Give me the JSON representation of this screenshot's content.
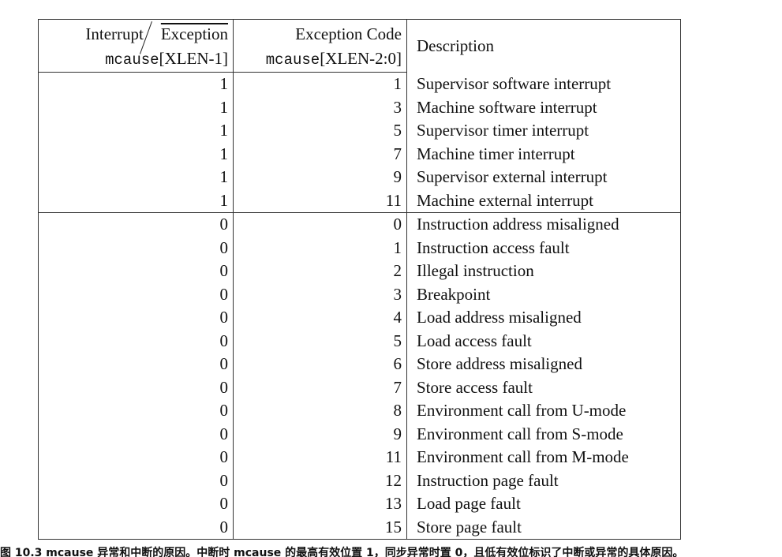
{
  "table": {
    "header": {
      "col1_line1_left": "Interrupt",
      "col1_line1_right": "Exception",
      "col1_line2_mono": "mcause",
      "col1_line2_rest": "[XLEN-1]",
      "col2_line1": "Exception Code",
      "col2_line2_mono": "mcause",
      "col2_line2_rest": "[XLEN-2:0]",
      "col3": "Description"
    },
    "interrupt_rows": [
      {
        "interrupt": "1",
        "code": "1",
        "desc": "Supervisor software interrupt"
      },
      {
        "interrupt": "1",
        "code": "3",
        "desc": "Machine software interrupt"
      },
      {
        "interrupt": "1",
        "code": "5",
        "desc": "Supervisor timer interrupt"
      },
      {
        "interrupt": "1",
        "code": "7",
        "desc": "Machine timer interrupt"
      },
      {
        "interrupt": "1",
        "code": "9",
        "desc": "Supervisor external interrupt"
      },
      {
        "interrupt": "1",
        "code": "11",
        "desc": "Machine external interrupt"
      }
    ],
    "exception_rows": [
      {
        "interrupt": "0",
        "code": "0",
        "desc": "Instruction address misaligned"
      },
      {
        "interrupt": "0",
        "code": "1",
        "desc": "Instruction access fault"
      },
      {
        "interrupt": "0",
        "code": "2",
        "desc": "Illegal instruction"
      },
      {
        "interrupt": "0",
        "code": "3",
        "desc": "Breakpoint"
      },
      {
        "interrupt": "0",
        "code": "4",
        "desc": "Load address misaligned"
      },
      {
        "interrupt": "0",
        "code": "5",
        "desc": "Load access fault"
      },
      {
        "interrupt": "0",
        "code": "6",
        "desc": "Store address misaligned"
      },
      {
        "interrupt": "0",
        "code": "7",
        "desc": "Store access fault"
      },
      {
        "interrupt": "0",
        "code": "8",
        "desc": "Environment call from U-mode"
      },
      {
        "interrupt": "0",
        "code": "9",
        "desc": "Environment call from S-mode"
      },
      {
        "interrupt": "0",
        "code": "11",
        "desc": "Environment call from M-mode"
      },
      {
        "interrupt": "0",
        "code": "12",
        "desc": "Instruction page fault"
      },
      {
        "interrupt": "0",
        "code": "13",
        "desc": "Load page fault"
      },
      {
        "interrupt": "0",
        "code": "15",
        "desc": "Store page fault"
      }
    ]
  },
  "caption": "图 10.3 mcause 异常和中断的原因。中断时 mcause 的最高有效位置 1，同步异常时置 0，且低有效位标识了中断或异常的具体原因。"
}
